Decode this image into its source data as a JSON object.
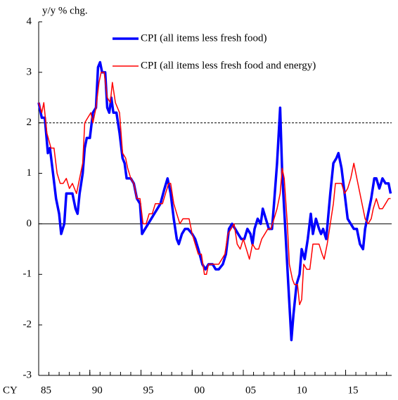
{
  "chart_data": {
    "type": "line",
    "y_axis_label": "y/y % chg.",
    "x_axis_label": "CY",
    "xlim": [
      1985,
      2019.5
    ],
    "ylim": [
      -3,
      4
    ],
    "yticks": [
      -3,
      -2,
      -1,
      0,
      1,
      2,
      3,
      4
    ],
    "xticks": [
      {
        "value": 1985,
        "label": "85"
      },
      {
        "value": 1990,
        "label": "90"
      },
      {
        "value": 1995,
        "label": "95"
      },
      {
        "value": 2000,
        "label": "00"
      },
      {
        "value": 2005,
        "label": "05"
      },
      {
        "value": 2010,
        "label": "10"
      },
      {
        "value": 2015,
        "label": "15"
      }
    ],
    "xminorticks": [
      1985,
      1986,
      1987,
      1988,
      1989,
      1990,
      1991,
      1992,
      1993,
      1994,
      1995,
      1996,
      1997,
      1998,
      1999,
      2000,
      2001,
      2002,
      2003,
      2004,
      2005,
      2006,
      2007,
      2008,
      2009,
      2010,
      2011,
      2012,
      2013,
      2014,
      2015,
      2016,
      2017,
      2018,
      2019
    ],
    "reference_lines": [
      {
        "value": 2,
        "dashed": true
      },
      {
        "value": 0,
        "dashed": false
      }
    ],
    "legend": "top",
    "series": [
      {
        "name": "CPI (all items less fresh food)",
        "color": "#0000ff",
        "width": 3.5,
        "x": [
          1985.0,
          1985.3,
          1985.6,
          1985.9,
          1986.1,
          1986.4,
          1986.7,
          1987.0,
          1987.2,
          1987.5,
          1987.7,
          1988.0,
          1988.3,
          1988.6,
          1988.8,
          1989.0,
          1989.3,
          1989.5,
          1989.7,
          1990.0,
          1990.3,
          1990.6,
          1990.8,
          1991.0,
          1991.2,
          1991.5,
          1991.7,
          1991.9,
          1992.1,
          1992.3,
          1992.6,
          1992.9,
          1993.2,
          1993.4,
          1993.6,
          1994.0,
          1994.3,
          1994.6,
          1994.9,
          1995.1,
          1995.4,
          1995.7,
          1996.0,
          1996.3,
          1996.6,
          1996.9,
          1997.3,
          1997.6,
          1997.9,
          1998.2,
          1998.5,
          1998.7,
          1999.0,
          1999.3,
          1999.6,
          2000.0,
          2000.3,
          2000.6,
          2001.0,
          2001.3,
          2001.6,
          2002.0,
          2002.3,
          2002.6,
          2003.0,
          2003.3,
          2003.6,
          2003.9,
          2004.2,
          2004.5,
          2004.8,
          2005.1,
          2005.4,
          2005.7,
          2005.9,
          2006.1,
          2006.4,
          2006.7,
          2006.9,
          2007.2,
          2007.5,
          2007.8,
          2008.0,
          2008.3,
          2008.6,
          2008.8,
          2009.1,
          2009.4,
          2009.7,
          2009.9,
          2010.2,
          2010.5,
          2010.7,
          2011.0,
          2011.3,
          2011.6,
          2011.8,
          2012.1,
          2012.4,
          2012.6,
          2012.8,
          2013.1,
          2013.5,
          2013.8,
          2014.1,
          2014.3,
          2014.6,
          2014.9,
          2015.2,
          2015.5,
          2015.8,
          2016.1,
          2016.4,
          2016.7,
          2016.9,
          2017.2,
          2017.5,
          2017.8,
          2018.0,
          2018.3,
          2018.6,
          2018.9,
          2019.2,
          2019.4
        ],
        "values": [
          2.4,
          2.1,
          2.1,
          1.4,
          1.5,
          1.0,
          0.5,
          0.2,
          -0.2,
          0.0,
          0.6,
          0.6,
          0.6,
          0.3,
          0.2,
          0.6,
          1.0,
          1.5,
          1.7,
          1.7,
          2.2,
          2.3,
          3.1,
          3.2,
          3.0,
          3.0,
          2.3,
          2.2,
          2.5,
          2.2,
          2.2,
          1.8,
          1.3,
          1.2,
          0.9,
          0.9,
          0.8,
          0.5,
          0.4,
          -0.2,
          -0.1,
          0.0,
          0.1,
          0.2,
          0.3,
          0.4,
          0.7,
          0.9,
          0.6,
          0.1,
          -0.3,
          -0.4,
          -0.2,
          -0.1,
          -0.1,
          -0.2,
          -0.3,
          -0.5,
          -0.8,
          -0.9,
          -0.8,
          -0.8,
          -0.9,
          -0.9,
          -0.8,
          -0.6,
          -0.1,
          0.0,
          -0.1,
          -0.2,
          -0.3,
          -0.3,
          -0.1,
          -0.2,
          -0.4,
          -0.1,
          0.1,
          0.0,
          0.3,
          0.1,
          -0.1,
          -0.1,
          0.4,
          1.2,
          2.3,
          1.0,
          -0.1,
          -1.2,
          -2.3,
          -1.8,
          -1.2,
          -1.0,
          -0.5,
          -0.7,
          -0.3,
          0.2,
          -0.2,
          0.1,
          -0.1,
          -0.2,
          -0.1,
          -0.3,
          0.6,
          1.2,
          1.3,
          1.4,
          1.1,
          0.6,
          0.1,
          0.0,
          -0.1,
          -0.1,
          -0.4,
          -0.5,
          -0.1,
          0.2,
          0.5,
          0.9,
          0.9,
          0.7,
          0.9,
          0.8,
          0.8,
          0.6
        ]
      },
      {
        "name": "CPI (all items less fresh food and energy)",
        "color": "#ff0000",
        "width": 1.5,
        "x": [
          1985.0,
          1985.3,
          1985.5,
          1985.8,
          1986.2,
          1986.5,
          1986.8,
          1987.1,
          1987.4,
          1987.7,
          1988.0,
          1988.3,
          1988.7,
          1989.0,
          1989.3,
          1989.5,
          1989.8,
          1990.1,
          1990.3,
          1990.6,
          1990.9,
          1991.1,
          1991.4,
          1991.7,
          1992.0,
          1992.2,
          1992.5,
          1992.9,
          1993.2,
          1993.5,
          1993.7,
          1994.0,
          1994.3,
          1994.6,
          1994.9,
          1995.2,
          1995.5,
          1995.8,
          1996.1,
          1996.4,
          1996.8,
          1997.1,
          1997.4,
          1997.7,
          1997.9,
          1998.2,
          1998.5,
          1998.8,
          1999.1,
          1999.4,
          1999.7,
          2000.0,
          2000.3,
          2000.6,
          2000.9,
          2001.2,
          2001.4,
          2001.6,
          2002.0,
          2002.3,
          2002.6,
          2002.9,
          2003.2,
          2003.5,
          2003.8,
          2004.1,
          2004.4,
          2004.7,
          2005.0,
          2005.3,
          2005.6,
          2005.9,
          2006.2,
          2006.5,
          2006.8,
          2007.1,
          2007.4,
          2007.7,
          2008.0,
          2008.3,
          2008.6,
          2008.8,
          2009.0,
          2009.3,
          2009.5,
          2009.8,
          2010.0,
          2010.3,
          2010.5,
          2010.7,
          2010.9,
          2011.2,
          2011.5,
          2011.8,
          2012.1,
          2012.4,
          2012.7,
          2012.9,
          2013.2,
          2013.5,
          2013.8,
          2014.0,
          2014.3,
          2014.6,
          2014.9,
          2015.2,
          2015.5,
          2015.8,
          2016.1,
          2016.4,
          2016.7,
          2016.9,
          2017.2,
          2017.5,
          2017.7,
          2018.0,
          2018.3,
          2018.6,
          2018.9,
          2019.2,
          2019.4
        ],
        "values": [
          2.4,
          2.2,
          2.4,
          1.8,
          1.5,
          1.5,
          1.0,
          0.8,
          0.8,
          0.9,
          0.7,
          0.8,
          0.6,
          0.9,
          1.2,
          2.0,
          2.1,
          2.2,
          2.0,
          2.3,
          2.8,
          3.0,
          3.0,
          2.5,
          2.4,
          2.8,
          2.4,
          2.2,
          1.4,
          1.3,
          1.1,
          0.9,
          0.8,
          0.5,
          0.5,
          0.0,
          0.0,
          0.2,
          0.2,
          0.4,
          0.4,
          0.4,
          0.6,
          0.8,
          0.8,
          0.4,
          0.2,
          0.0,
          0.1,
          0.1,
          0.1,
          -0.2,
          -0.4,
          -0.6,
          -0.6,
          -1.0,
          -1.0,
          -0.8,
          -0.8,
          -0.8,
          -0.8,
          -0.7,
          -0.6,
          -0.2,
          -0.1,
          0.0,
          -0.4,
          -0.5,
          -0.3,
          -0.5,
          -0.7,
          -0.4,
          -0.5,
          -0.5,
          -0.3,
          -0.2,
          -0.1,
          -0.1,
          0.1,
          0.3,
          0.6,
          1.1,
          0.9,
          0.0,
          -0.8,
          -1.1,
          -1.2,
          -1.2,
          -1.6,
          -1.5,
          -0.8,
          -0.9,
          -0.9,
          -0.4,
          -0.4,
          -0.4,
          -0.6,
          -0.7,
          -0.4,
          0.0,
          0.4,
          0.8,
          0.8,
          0.8,
          0.6,
          0.7,
          0.9,
          1.2,
          0.9,
          0.6,
          0.3,
          0.1,
          0.0,
          0.1,
          0.3,
          0.5,
          0.3,
          0.3,
          0.4,
          0.5,
          0.5
        ]
      }
    ]
  }
}
